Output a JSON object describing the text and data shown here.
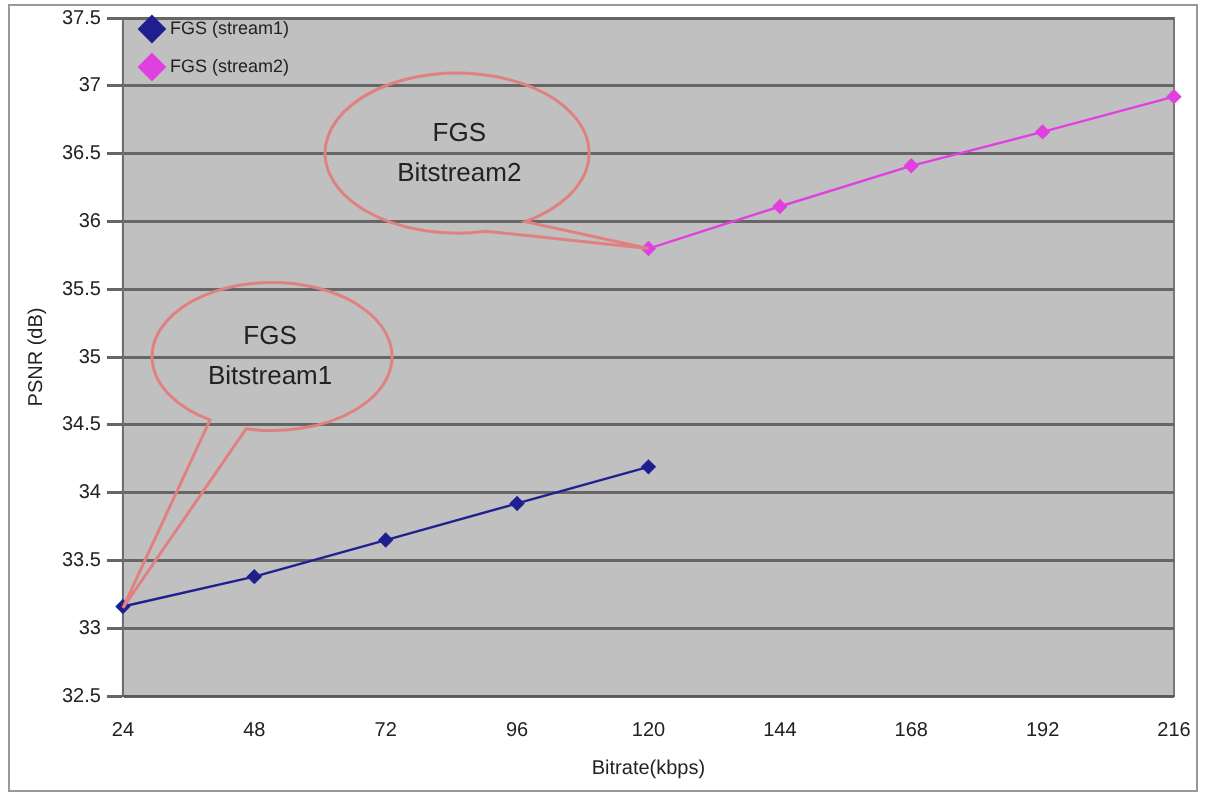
{
  "chart_data": {
    "type": "line",
    "xlabel": "Bitrate(kbps)",
    "ylabel": "PSNR (dB)",
    "categories": [
      "24",
      "48",
      "72",
      "96",
      "120",
      "144",
      "168",
      "192",
      "216"
    ],
    "series": [
      {
        "name": "FGS (stream1)",
        "color": "#1f1f8f",
        "values": [
          33.16,
          33.38,
          33.65,
          33.92,
          34.19,
          null,
          null,
          null,
          null
        ]
      },
      {
        "name": "FGS (stream2)",
        "color": "#e040e0",
        "values": [
          null,
          null,
          null,
          null,
          35.8,
          36.11,
          36.41,
          36.66,
          36.92
        ]
      }
    ],
    "ylim": [
      32.5,
      37.5
    ],
    "yticks": [
      32.5,
      33,
      33.5,
      34,
      34.5,
      35,
      35.5,
      36,
      36.5,
      37,
      37.5
    ],
    "grid": "y",
    "legend": "top left",
    "marker": "diamond",
    "line_style": "solid",
    "annotations": [
      "FGS Bitstream1",
      "FGS Bitstream2"
    ]
  }
}
